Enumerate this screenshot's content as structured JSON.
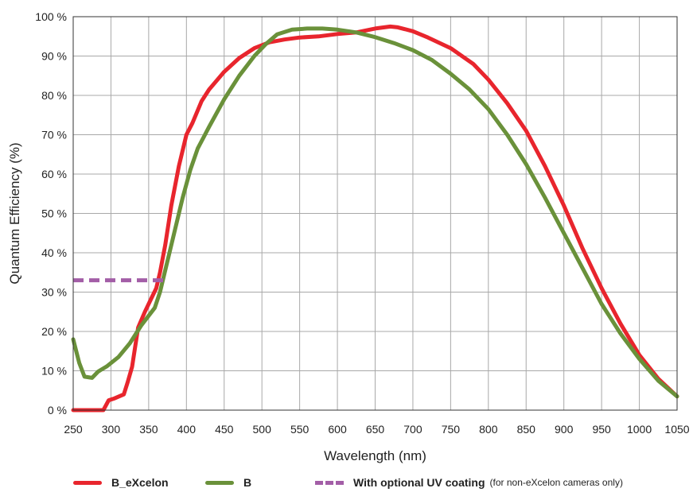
{
  "chart_data": {
    "type": "line",
    "xlabel": "Wavelength (nm)",
    "ylabel": "Quantum Efficiency (%)",
    "xlim": [
      250,
      1050
    ],
    "ylim": [
      0,
      100
    ],
    "x_ticks": [
      250,
      300,
      350,
      400,
      450,
      500,
      550,
      600,
      650,
      700,
      750,
      800,
      850,
      900,
      950,
      1000,
      1050
    ],
    "y_ticks": [
      0,
      10,
      20,
      30,
      40,
      50,
      60,
      70,
      80,
      90,
      100
    ],
    "y_tick_labels": [
      "0 %",
      "10 %",
      "20 %",
      "30 %",
      "40 %",
      "50 %",
      "60 %",
      "70 %",
      "80 %",
      "90 %",
      "100 %"
    ],
    "grid": true,
    "legend_position": "bottom",
    "series": [
      {
        "name": "B_eXcelon",
        "color": "#e8252d",
        "style": "solid",
        "points": [
          [
            250,
            0
          ],
          [
            270,
            0
          ],
          [
            290,
            0
          ],
          [
            297,
            2.5
          ],
          [
            305,
            3
          ],
          [
            317,
            4
          ],
          [
            322,
            7
          ],
          [
            328,
            11
          ],
          [
            336,
            21
          ],
          [
            345,
            25
          ],
          [
            355,
            29
          ],
          [
            360,
            31
          ],
          [
            365,
            35
          ],
          [
            372,
            42
          ],
          [
            380,
            52
          ],
          [
            390,
            62
          ],
          [
            400,
            70
          ],
          [
            408,
            73
          ],
          [
            420,
            78.5
          ],
          [
            430,
            81.5
          ],
          [
            450,
            86
          ],
          [
            470,
            89.5
          ],
          [
            490,
            92
          ],
          [
            510,
            93.5
          ],
          [
            530,
            94.2
          ],
          [
            550,
            94.7
          ],
          [
            575,
            95
          ],
          [
            600,
            95.6
          ],
          [
            625,
            96
          ],
          [
            650,
            97
          ],
          [
            670,
            97.5
          ],
          [
            680,
            97.3
          ],
          [
            700,
            96.3
          ],
          [
            720,
            94.7
          ],
          [
            750,
            92
          ],
          [
            780,
            88
          ],
          [
            800,
            84
          ],
          [
            825,
            78
          ],
          [
            850,
            71
          ],
          [
            875,
            62
          ],
          [
            900,
            52
          ],
          [
            925,
            41
          ],
          [
            950,
            31
          ],
          [
            975,
            22
          ],
          [
            1000,
            14
          ],
          [
            1025,
            8
          ],
          [
            1050,
            3.5
          ]
        ]
      },
      {
        "name": "B",
        "color": "#6a913a",
        "style": "solid",
        "points": [
          [
            250,
            18
          ],
          [
            258,
            12
          ],
          [
            265,
            8.5
          ],
          [
            275,
            8.2
          ],
          [
            283,
            9.8
          ],
          [
            295,
            11.2
          ],
          [
            310,
            13.5
          ],
          [
            325,
            17
          ],
          [
            340,
            21.5
          ],
          [
            350,
            24
          ],
          [
            358,
            26
          ],
          [
            365,
            30
          ],
          [
            375,
            38
          ],
          [
            385,
            46
          ],
          [
            395,
            54
          ],
          [
            405,
            61
          ],
          [
            415,
            66.5
          ],
          [
            430,
            72
          ],
          [
            450,
            79
          ],
          [
            470,
            85
          ],
          [
            490,
            90
          ],
          [
            505,
            93
          ],
          [
            520,
            95.5
          ],
          [
            540,
            96.7
          ],
          [
            560,
            97
          ],
          [
            580,
            97
          ],
          [
            600,
            96.7
          ],
          [
            625,
            96
          ],
          [
            650,
            94.8
          ],
          [
            675,
            93.3
          ],
          [
            700,
            91.5
          ],
          [
            725,
            89
          ],
          [
            750,
            85.5
          ],
          [
            775,
            81.5
          ],
          [
            800,
            76.5
          ],
          [
            825,
            70
          ],
          [
            850,
            62.5
          ],
          [
            875,
            54
          ],
          [
            900,
            45
          ],
          [
            925,
            36
          ],
          [
            950,
            27
          ],
          [
            975,
            19.5
          ],
          [
            1000,
            13
          ],
          [
            1025,
            7.5
          ],
          [
            1050,
            3.5
          ]
        ]
      },
      {
        "name": "With optional UV coating",
        "color": "#a35ea7",
        "style": "dashed",
        "points": [
          [
            250,
            33
          ],
          [
            372,
            33
          ]
        ]
      }
    ]
  },
  "legend": {
    "items": [
      {
        "label": "B_eXcelon",
        "color": "#e8252d",
        "style": "solid",
        "note": ""
      },
      {
        "label": "B",
        "color": "#6a913a",
        "style": "solid",
        "note": ""
      },
      {
        "label": "With optional UV coating",
        "color": "#a35ea7",
        "style": "dashed",
        "note": "(for non-eXcelon cameras only)"
      }
    ]
  }
}
